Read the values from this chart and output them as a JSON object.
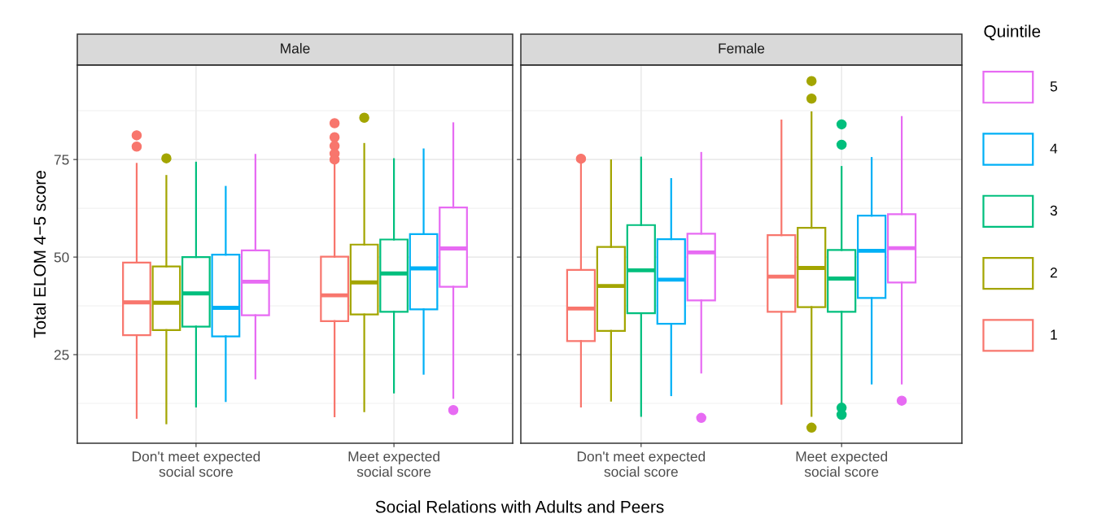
{
  "chart_data": [
    {
      "type": "box",
      "title": "Male",
      "ylabel": "Total ELOM 4−5 score",
      "xlabel": "Social Relations with Adults and Peers",
      "categories": [
        "Don't meet expected\nsocial score",
        "Meet expected\nsocial score"
      ],
      "ylim": [
        2.3,
        99.2
      ],
      "yticks": [
        25,
        50,
        75
      ],
      "grid": true,
      "series": [
        {
          "color": "#f8766d",
          "boxes": [
            {
              "low": 8.8,
              "q1": 30.0,
              "median": 38.4,
              "q3": 48.6,
              "high": 73.9,
              "outliers": [
                81.2,
                78.3
              ]
            },
            {
              "low": 9.2,
              "q1": 33.6,
              "median": 40.2,
              "q3": 50.1,
              "high": 73.9,
              "outliers": [
                84.3,
                80.7,
                78.5,
                76.5,
                75.0
              ]
            }
          ]
        },
        {
          "color": "#a3a500",
          "boxes": [
            {
              "low": 7.4,
              "q1": 31.3,
              "median": 38.3,
              "q3": 47.6,
              "high": 70.8,
              "outliers": [
                75.3
              ]
            },
            {
              "low": 10.5,
              "q1": 35.3,
              "median": 43.5,
              "q3": 53.2,
              "high": 79.0,
              "outliers": [
                85.7
              ]
            }
          ]
        },
        {
          "color": "#00bf7d",
          "boxes": [
            {
              "low": 11.7,
              "q1": 32.2,
              "median": 40.7,
              "q3": 50.0,
              "high": 74.2
            },
            {
              "low": 15.3,
              "q1": 36.0,
              "median": 45.8,
              "q3": 54.5,
              "high": 75.1
            }
          ]
        },
        {
          "color": "#00b0f6",
          "boxes": [
            {
              "low": 13.1,
              "q1": 29.7,
              "median": 37.0,
              "q3": 50.6,
              "high": 68.0
            },
            {
              "low": 20.1,
              "q1": 36.6,
              "median": 47.1,
              "q3": 55.9,
              "high": 77.6
            }
          ]
        },
        {
          "color": "#e76bf3",
          "boxes": [
            {
              "low": 18.9,
              "q1": 35.1,
              "median": 43.7,
              "q3": 51.7,
              "high": 76.2
            },
            {
              "low": 13.9,
              "q1": 42.4,
              "median": 52.2,
              "q3": 62.7,
              "high": 84.3,
              "outliers": [
                10.8
              ]
            }
          ]
        }
      ]
    },
    {
      "type": "box",
      "title": "Female",
      "legend_title": "Quintile",
      "categories": [
        "Don't meet expected\nsocial score",
        "Meet expected\nsocial score"
      ],
      "ylim": [
        2.3,
        99.2
      ],
      "yticks": [
        25,
        50,
        75
      ],
      "grid": true,
      "legend": "right",
      "tick_labels": "x",
      "series": [
        {
          "name": "1",
          "color": "#f8766d",
          "boxes": [
            {
              "low": 11.7,
              "q1": 28.5,
              "median": 36.8,
              "q3": 46.7,
              "high": 73.8,
              "outliers": [
                75.2
              ]
            },
            {
              "low": 12.4,
              "q1": 36.0,
              "median": 45.0,
              "q3": 55.6,
              "high": 85.0
            }
          ]
        },
        {
          "name": "2",
          "color": "#a3a500",
          "boxes": [
            {
              "low": 13.2,
              "q1": 31.1,
              "median": 42.6,
              "q3": 52.6,
              "high": 74.8
            },
            {
              "low": 9.3,
              "q1": 37.2,
              "median": 47.2,
              "q3": 57.5,
              "high": 87.1,
              "outliers": [
                95.1,
                90.6,
                6.3
              ]
            }
          ]
        },
        {
          "name": "3",
          "color": "#00bf7d",
          "boxes": [
            {
              "low": 9.3,
              "q1": 35.6,
              "median": 46.6,
              "q3": 58.2,
              "high": 75.5
            },
            {
              "low": 11.7,
              "q1": 36.0,
              "median": 44.5,
              "q3": 51.8,
              "high": 73.1,
              "outliers": [
                84.0,
                78.8,
                11.4,
                9.6
              ]
            }
          ]
        },
        {
          "name": "4",
          "color": "#00b0f6",
          "boxes": [
            {
              "low": 14.6,
              "q1": 32.9,
              "median": 44.2,
              "q3": 54.6,
              "high": 70.0
            },
            {
              "low": 17.6,
              "q1": 39.5,
              "median": 51.6,
              "q3": 60.6,
              "high": 75.4
            }
          ]
        },
        {
          "name": "5",
          "color": "#e76bf3",
          "boxes": [
            {
              "low": 20.4,
              "q1": 38.9,
              "median": 51.2,
              "q3": 56.0,
              "high": 76.7,
              "outliers": [
                8.8
              ]
            },
            {
              "low": 17.6,
              "q1": 43.5,
              "median": 52.3,
              "q3": 61.0,
              "high": 85.9,
              "outliers": [
                13.2
              ]
            }
          ]
        }
      ]
    }
  ]
}
